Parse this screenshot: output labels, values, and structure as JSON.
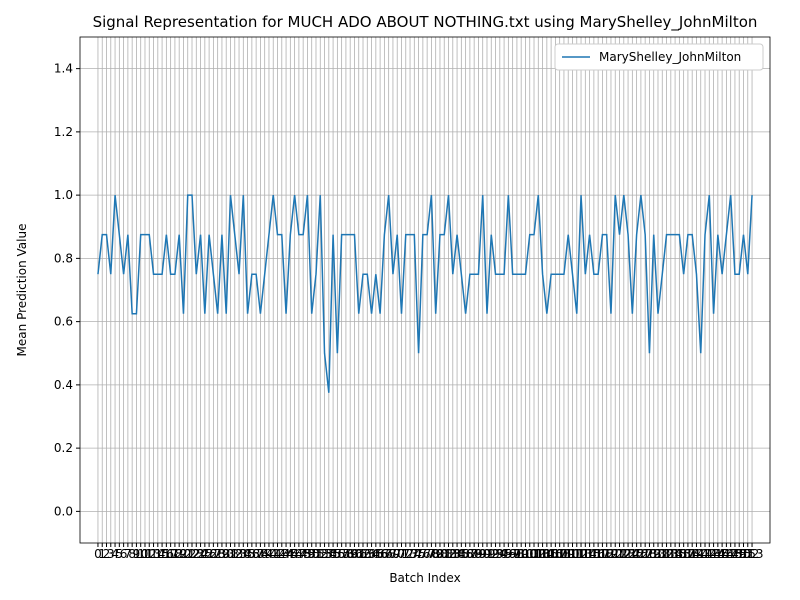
{
  "chart_data": {
    "type": "line",
    "title": "Signal Representation for MUCH ADO ABOUT NOTHING.txt using MaryShelley_JohnMilton",
    "xlabel": "Batch Index",
    "ylabel": "Mean Prediction Value",
    "x": [
      0,
      1,
      2,
      3,
      4,
      5,
      6,
      7,
      8,
      9,
      10,
      11,
      12,
      13,
      14,
      15,
      16,
      17,
      18,
      19,
      20,
      21,
      22,
      23,
      24,
      25,
      26,
      27,
      28,
      29,
      30,
      31,
      32,
      33,
      34,
      35,
      36,
      37,
      38,
      39,
      40,
      41,
      42,
      43,
      44,
      45,
      46,
      47,
      48,
      49,
      50,
      51,
      52,
      53,
      54,
      55,
      56,
      57,
      58,
      59,
      60,
      61,
      62,
      63,
      64,
      65,
      66,
      67,
      68,
      69,
      70,
      71,
      72,
      73,
      74,
      75,
      76,
      77,
      78,
      79,
      80,
      81,
      82,
      83,
      84,
      85,
      86,
      87,
      88,
      89,
      90,
      91,
      92,
      93,
      94,
      95,
      96,
      97,
      98,
      99,
      100,
      101,
      102,
      103,
      104,
      105,
      106,
      107,
      108,
      109,
      110,
      111,
      112,
      113,
      114,
      115,
      116,
      117,
      118,
      119,
      120,
      121,
      122,
      123,
      124,
      125,
      126,
      127,
      128,
      129,
      130,
      131,
      132,
      133,
      134,
      135,
      136,
      137,
      138,
      139,
      140,
      141,
      142,
      143,
      144,
      145,
      146,
      147,
      148,
      149,
      150,
      151,
      152,
      153
    ],
    "series": [
      {
        "name": "MaryShelley_JohnMilton",
        "color": "#1f77b4",
        "values": [
          0.75,
          0.875,
          0.875,
          0.75,
          1.0,
          0.875,
          0.75,
          0.875,
          0.625,
          0.625,
          0.875,
          0.875,
          0.875,
          0.75,
          0.75,
          0.75,
          0.875,
          0.75,
          0.75,
          0.875,
          0.625,
          1.0,
          1.0,
          0.75,
          0.875,
          0.625,
          0.875,
          0.75,
          0.625,
          0.875,
          0.625,
          1.0,
          0.875,
          0.75,
          1.0,
          0.625,
          0.75,
          0.75,
          0.625,
          0.75,
          0.875,
          1.0,
          0.875,
          0.875,
          0.625,
          0.875,
          1.0,
          0.875,
          0.875,
          1.0,
          0.625,
          0.75,
          1.0,
          0.5,
          0.375,
          0.875,
          0.5,
          0.875,
          0.875,
          0.875,
          0.875,
          0.625,
          0.75,
          0.75,
          0.625,
          0.75,
          0.625,
          0.875,
          1.0,
          0.75,
          0.875,
          0.625,
          0.875,
          0.875,
          0.875,
          0.5,
          0.875,
          0.875,
          1.0,
          0.625,
          0.875,
          0.875,
          1.0,
          0.75,
          0.875,
          0.75,
          0.625,
          0.75,
          0.75,
          0.75,
          1.0,
          0.625,
          0.875,
          0.75,
          0.75,
          0.75,
          1.0,
          0.75,
          0.75,
          0.75,
          0.75,
          0.875,
          0.875,
          1.0,
          0.75,
          0.625,
          0.75,
          0.75,
          0.75,
          0.75,
          0.875,
          0.75,
          0.625,
          1.0,
          0.75,
          0.875,
          0.75,
          0.75,
          0.875,
          0.875,
          0.625,
          1.0,
          0.875,
          1.0,
          0.875,
          0.625,
          0.875,
          1.0,
          0.875,
          0.5,
          0.875,
          0.625,
          0.75,
          0.875,
          0.875,
          0.875,
          0.875,
          0.75,
          0.875,
          0.875,
          0.75,
          0.5,
          0.875,
          1.0,
          0.625,
          0.875,
          0.75,
          0.875,
          1.0,
          0.75,
          0.75,
          0.875,
          0.75,
          1.0
        ]
      }
    ],
    "xlim": [
      -4.2,
      157.2
    ],
    "xticks": [
      0,
      1,
      2,
      3,
      4,
      5,
      6,
      7,
      8,
      9,
      10,
      11,
      12,
      13,
      14,
      15,
      16,
      17,
      18,
      19,
      20,
      21,
      22,
      23,
      24,
      25,
      26,
      27,
      28,
      29,
      30,
      31,
      32,
      33,
      34,
      35,
      36,
      37,
      38,
      39,
      40,
      41,
      42,
      43,
      44,
      45,
      46,
      47,
      48,
      49,
      50,
      51,
      52,
      53,
      54,
      55,
      56,
      57,
      58,
      59,
      60,
      61,
      62,
      63,
      64,
      65,
      66,
      67,
      68,
      69,
      70,
      71,
      72,
      73,
      74,
      75,
      76,
      77,
      78,
      79,
      80,
      81,
      82,
      83,
      84,
      85,
      86,
      87,
      88,
      89,
      90,
      91,
      92,
      93,
      94,
      95,
      96,
      97,
      98,
      99,
      100,
      101,
      102,
      103,
      104,
      105,
      106,
      107,
      108,
      109,
      110,
      111,
      112,
      113,
      114,
      115,
      116,
      117,
      118,
      119,
      120,
      121,
      122,
      123,
      124,
      125,
      126,
      127,
      128,
      129,
      130,
      131,
      132,
      133,
      134,
      135,
      136,
      137,
      138,
      139,
      140,
      141,
      142,
      143,
      144,
      145,
      146,
      147,
      148,
      149,
      150,
      151,
      152,
      153
    ],
    "ylim": [
      -0.1,
      1.5
    ],
    "yticks": [
      {
        "value": 0,
        "label": "0.0"
      },
      0.2,
      0.4,
      0.6,
      0.8,
      {
        "value": 1,
        "label": "1.0"
      },
      1.2,
      1.4
    ],
    "grid": true,
    "legend": "upper right"
  }
}
